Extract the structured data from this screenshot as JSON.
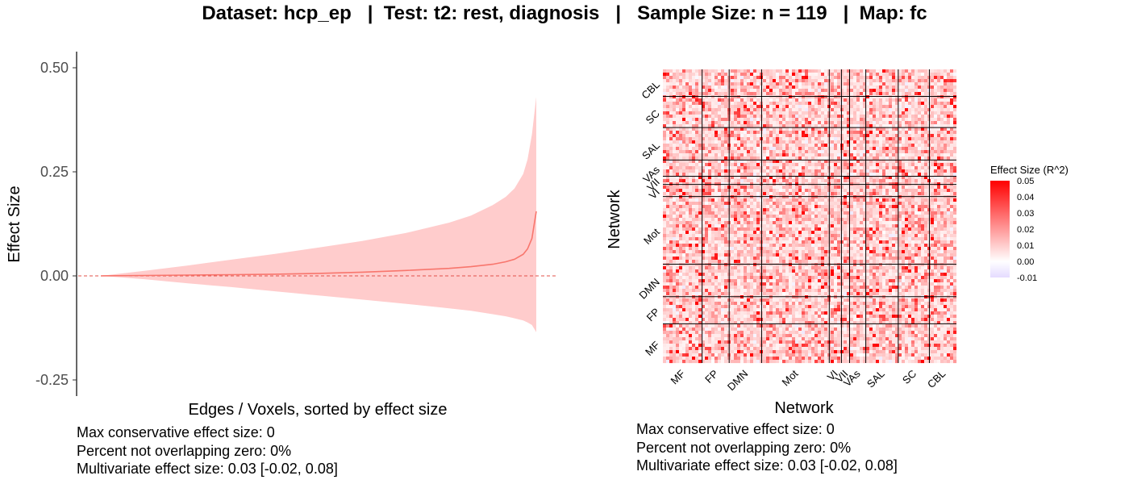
{
  "title": "Dataset: hcp_ep   |  Test: t2: rest, diagnosis   |   Sample Size: n = 119   |  Map: fc",
  "colors": {
    "line": "#f8766d",
    "ribbon": "#ffcccc",
    "zero_line": "#e3504a",
    "cell_high": "#ff0000",
    "cell_low": "#e5dbff",
    "grid": "#000000"
  },
  "chart_data": [
    {
      "type": "area",
      "xlabel": "Edges / Voxels, sorted by effect size",
      "ylabel": "Effect Size",
      "ylim": [
        -0.29,
        0.53
      ],
      "yticks": [
        "-0.25",
        "0.00",
        "0.25",
        "0.50"
      ],
      "ytick_values": [
        -0.25,
        0.0,
        0.25,
        0.5
      ],
      "reference_line": 0,
      "x": [
        0,
        0.1,
        0.2,
        0.3,
        0.4,
        0.5,
        0.6,
        0.7,
        0.8,
        0.85,
        0.9,
        0.93,
        0.95,
        0.97,
        0.98,
        0.99,
        1.0
      ],
      "series": [
        {
          "values": [
            0.0,
            0.001,
            0.002,
            0.003,
            0.004,
            0.006,
            0.009,
            0.013,
            0.018,
            0.022,
            0.028,
            0.034,
            0.04,
            0.052,
            0.065,
            0.09,
            0.155
          ]
        },
        {
          "values": [
            0.0,
            0.012,
            0.025,
            0.039,
            0.053,
            0.068,
            0.084,
            0.103,
            0.128,
            0.145,
            0.17,
            0.19,
            0.21,
            0.245,
            0.28,
            0.34,
            0.43
          ]
        },
        {
          "values": [
            0.0,
            -0.008,
            -0.018,
            -0.027,
            -0.037,
            -0.047,
            -0.057,
            -0.067,
            -0.078,
            -0.084,
            -0.092,
            -0.097,
            -0.102,
            -0.107,
            -0.112,
            -0.118,
            -0.135
          ]
        }
      ]
    },
    {
      "type": "heatmap",
      "xlabel": "Network",
      "ylabel": "Network",
      "networks": [
        "MF",
        "FP",
        "DMN",
        "Mot",
        "VI",
        "VII",
        "VAs",
        "SAL",
        "SC",
        "CBL"
      ],
      "network_sizes": [
        29,
        20,
        24,
        50,
        9,
        6,
        12,
        24,
        23,
        20
      ],
      "value_range": [
        -0.01,
        0.05
      ],
      "legend": {
        "title": "Effect Size (R^2)",
        "ticks": [
          "0.05",
          "0.04",
          "0.03",
          "0.02",
          "0.01",
          "0.00",
          "-0.01"
        ],
        "tick_values": [
          0.05,
          0.04,
          0.03,
          0.02,
          0.01,
          0.0,
          -0.01
        ]
      }
    }
  ],
  "stats": {
    "left": [
      "Max conservative effect size: 0",
      "Percent not overlapping zero: 0%",
      "Multivariate effect size: 0.03 [-0.02, 0.08]"
    ],
    "right": [
      "Max conservative effect size: 0",
      "Percent not overlapping zero: 0%",
      "Multivariate effect size: 0.03 [-0.02, 0.08]"
    ]
  }
}
